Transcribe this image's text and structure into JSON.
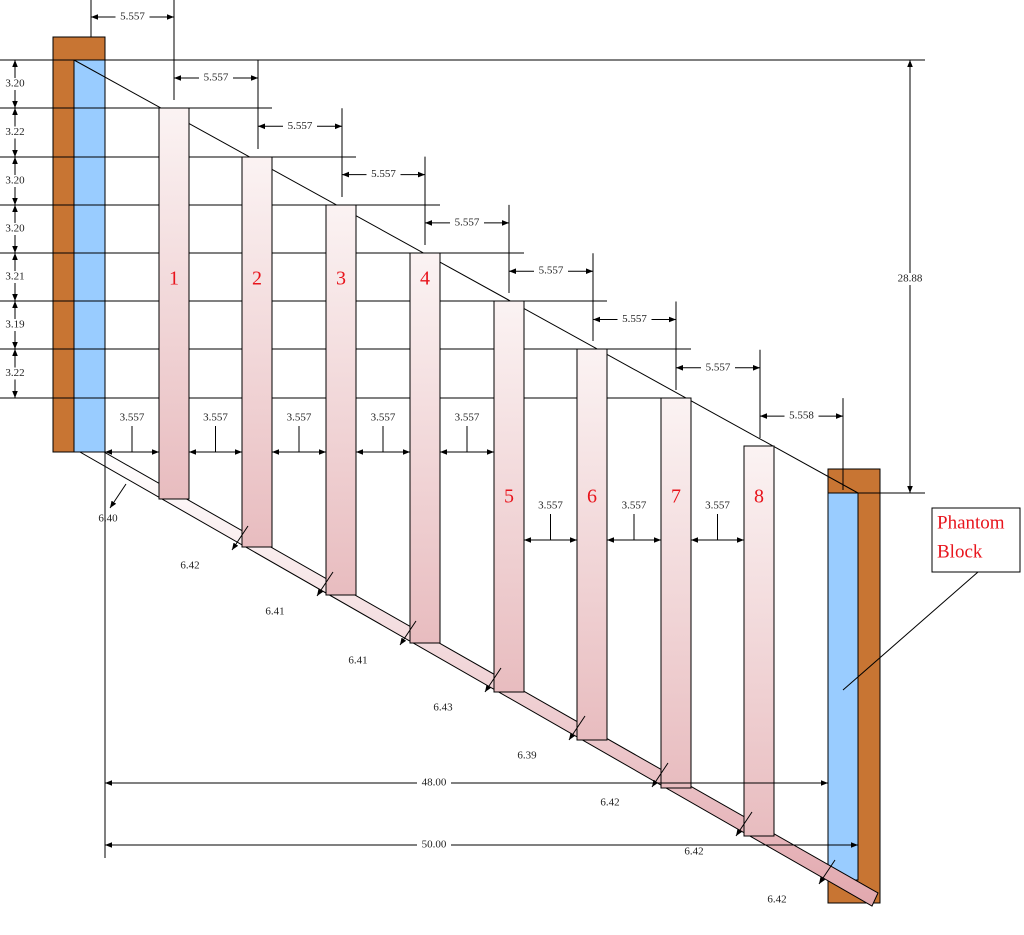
{
  "top_dims": [
    "5.557",
    "5.557",
    "5.557",
    "5.557",
    "5.557",
    "5.557",
    "5.557",
    "5.557",
    "5.558"
  ],
  "left_dims": [
    "3.20",
    "3.22",
    "3.20",
    "3.20",
    "3.21",
    "3.19",
    "3.22"
  ],
  "height_dim": "28.88",
  "blocks": [
    "1",
    "2",
    "3",
    "4",
    "5",
    "6",
    "7",
    "8"
  ],
  "gap_dims": [
    "3.557",
    "3.557",
    "3.557",
    "3.557",
    "3.557",
    "3.557",
    "3.557",
    "3.557"
  ],
  "diag_dims": [
    "6.40",
    "6.42",
    "6.41",
    "6.41",
    "6.43",
    "6.39",
    "6.42",
    "6.42",
    "6.42"
  ],
  "span_dims": [
    "48.00",
    "50.00"
  ],
  "callout": [
    "Phantom",
    "Block"
  ]
}
